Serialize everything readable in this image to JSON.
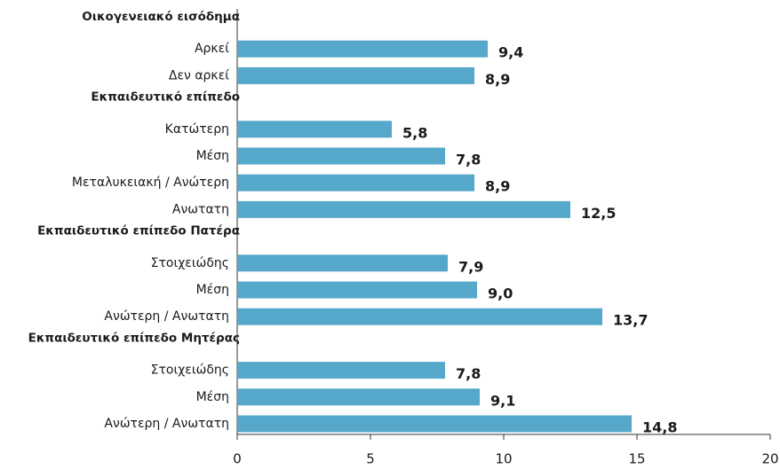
{
  "chart_data": {
    "type": "bar",
    "orientation": "horizontal",
    "categories": [
      "Οικογενειακό εισόδημα",
      "Αρκεί",
      "Δεν αρκεί",
      "Εκπαιδευτικό επίπεδο",
      "Κατώτερη",
      "Μέση",
      "Μεταλυκειακή / Ανώτερη",
      "Ανωτατη",
      "Εκπαιδευτικό επίπεδο Πατέρα",
      "Στοιχειώδης",
      "Μέση",
      "Ανώτερη / Ανωτατη",
      "Εκπαιδευτικό επίπεδο Μητέρας",
      "Στοιχειώδης",
      "Μέση",
      "Ανώτερη / Ανωτατη"
    ],
    "values": [
      null,
      9.4,
      8.9,
      null,
      5.8,
      7.8,
      8.9,
      12.5,
      null,
      7.9,
      9.0,
      13.7,
      null,
      7.8,
      9.1,
      14.8
    ],
    "value_labels": [
      null,
      "9,4",
      "8,9",
      null,
      "5,8",
      "7,8",
      "8,9",
      "12,5",
      null,
      "7,9",
      "9,0",
      "13,7",
      null,
      "7,8",
      "9,1",
      "14,8"
    ],
    "color": "#55a8c9",
    "xlim": [
      0,
      20
    ],
    "xticks": [
      0,
      5,
      10,
      15,
      20
    ]
  }
}
